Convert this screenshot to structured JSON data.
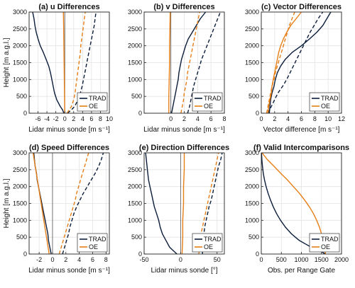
{
  "colors": {
    "trad": "#0b1d3a",
    "oe": "#e67e16",
    "grid": "#e3e3e3",
    "axis": "#222222"
  },
  "legend": {
    "trad": "TRAD",
    "oe": "OE",
    "placement": "bottom-right"
  },
  "chart_data": [
    {
      "type": "line",
      "title": "(a) u Differences",
      "xlabel": "Lidar minus sonde [m s⁻¹]",
      "ylabel": "Height [m a.g.l.]",
      "xlim": [
        -8,
        10
      ],
      "ylim": [
        0,
        3000
      ],
      "xticks": [
        "-6",
        "-4",
        "-2",
        "0",
        "2",
        "4",
        "6",
        "8",
        "10"
      ],
      "xtick_values": [
        -6,
        -4,
        -2,
        0,
        2,
        4,
        6,
        8,
        10
      ],
      "yticks": [
        "0",
        "500",
        "1000",
        "1500",
        "2000",
        "2500",
        "3000"
      ],
      "ytick_values": [
        0,
        500,
        1000,
        1500,
        2000,
        2500,
        3000
      ],
      "ref_line": 0,
      "grid": true,
      "series": [
        {
          "name": "TRAD",
          "style": "solid",
          "y": [
            0,
            100,
            200,
            400,
            600,
            800,
            1000,
            1200,
            1400,
            1600,
            1800,
            2000,
            2200,
            2400,
            2600,
            2800,
            3000
          ],
          "x": [
            -0.2,
            -0.5,
            -1.0,
            -1.8,
            -2.3,
            -2.6,
            -2.9,
            -3.2,
            -3.6,
            -4.2,
            -4.8,
            -5.5,
            -6.0,
            -6.4,
            -6.7,
            -6.9,
            -7.2
          ]
        },
        {
          "name": "TRAD",
          "style": "dashed",
          "y": [
            0,
            100,
            200,
            400,
            600,
            800,
            1000,
            1200,
            1400,
            1600,
            1800,
            2000,
            2200,
            2400,
            2600,
            2800,
            3000
          ],
          "x": [
            0.6,
            1.5,
            2.2,
            3.0,
            3.5,
            3.9,
            4.2,
            4.5,
            4.8,
            5.1,
            5.4,
            5.7,
            6.0,
            6.3,
            6.6,
            6.8,
            7.0
          ]
        },
        {
          "name": "OE",
          "style": "solid",
          "y": [
            0,
            500,
            1000,
            1500,
            2000,
            2500,
            3000
          ],
          "x": [
            0.0,
            -0.05,
            -0.1,
            -0.15,
            -0.2,
            -0.25,
            -0.3
          ]
        },
        {
          "name": "OE",
          "style": "dashed",
          "y": [
            0,
            100,
            200,
            400,
            600,
            800,
            1000,
            1200,
            1400,
            1600,
            1800,
            2000,
            2200,
            2400,
            2600,
            2800,
            3000
          ],
          "x": [
            0.5,
            1.0,
            1.5,
            2.0,
            2.3,
            2.5,
            2.7,
            2.9,
            3.1,
            3.3,
            3.5,
            3.6,
            3.8,
            4.0,
            4.2,
            4.4,
            4.6
          ]
        }
      ]
    },
    {
      "type": "line",
      "title": "(b) v Differences",
      "xlabel": "Lidar minus sonde [m s⁻¹]",
      "xlim": [
        -4,
        8
      ],
      "ylim": [
        0,
        3000
      ],
      "xticks": [
        "0",
        "2",
        "4",
        "6",
        "8"
      ],
      "xtick_values": [
        0,
        2,
        4,
        6,
        8
      ],
      "yticks": [
        "0",
        "500",
        "1000",
        "1500",
        "2000",
        "2500",
        "3000"
      ],
      "ytick_values": [
        0,
        500,
        1000,
        1500,
        2000,
        2500,
        3000
      ],
      "ref_line": 0,
      "grid": true,
      "series": [
        {
          "name": "TRAD",
          "style": "solid",
          "y": [
            0,
            200,
            400,
            600,
            800,
            1000,
            1200,
            1400,
            1600,
            1800,
            2000,
            2200,
            2400,
            2600,
            2800,
            3000
          ],
          "x": [
            0.1,
            0.3,
            0.5,
            0.7,
            0.9,
            1.1,
            1.2,
            1.4,
            1.6,
            1.9,
            2.2,
            2.6,
            3.2,
            3.8,
            4.4,
            5.2
          ]
        },
        {
          "name": "TRAD",
          "style": "dashed",
          "y": [
            0,
            200,
            400,
            600,
            800,
            1000,
            1200,
            1400,
            1600,
            1800,
            2000,
            2200,
            2400,
            2600,
            2800,
            3000
          ],
          "x": [
            2.5,
            2.8,
            3.0,
            3.2,
            3.4,
            3.7,
            4.0,
            4.3,
            4.6,
            5.0,
            5.4,
            5.8,
            6.2,
            6.6,
            7.0,
            7.4
          ]
        },
        {
          "name": "OE",
          "style": "solid",
          "y": [
            0,
            500,
            1000,
            1500,
            2000,
            2500,
            3000
          ],
          "x": [
            -0.3,
            -0.3,
            -0.25,
            -0.2,
            -0.2,
            -0.15,
            -0.1
          ]
        },
        {
          "name": "OE",
          "style": "dashed",
          "y": [
            0,
            200,
            400,
            600,
            800,
            1000,
            1200,
            1400,
            1600,
            1800,
            2000,
            2200,
            2400,
            2600,
            2800,
            3000
          ],
          "x": [
            1.5,
            1.7,
            1.9,
            2.0,
            2.2,
            2.4,
            2.5,
            2.7,
            2.9,
            3.1,
            3.3,
            3.5,
            3.7,
            3.9,
            4.1,
            4.3
          ]
        }
      ]
    },
    {
      "type": "line",
      "title": "(c) Vector Differences",
      "xlabel": "Vector difference [m s⁻¹]",
      "xlim": [
        0,
        12
      ],
      "ylim": [
        0,
        3000
      ],
      "xticks": [
        "0",
        "2",
        "4",
        "6",
        "8",
        "10",
        "12"
      ],
      "xtick_values": [
        0,
        2,
        4,
        6,
        8,
        10,
        12
      ],
      "yticks": [
        "0",
        "500",
        "1000",
        "1500",
        "2000",
        "2500",
        "3000"
      ],
      "ytick_values": [
        0,
        500,
        1000,
        1500,
        2000,
        2500,
        3000
      ],
      "grid": true,
      "series": [
        {
          "name": "TRAD",
          "style": "solid",
          "y": [
            0,
            200,
            400,
            600,
            800,
            1000,
            1200,
            1400,
            1600,
            1800,
            2000,
            2200,
            2400,
            2600,
            2800,
            3000
          ],
          "x": [
            1.2,
            1.3,
            1.4,
            1.6,
            1.9,
            2.1,
            2.4,
            2.9,
            3.6,
            4.6,
            6.0,
            7.2,
            8.3,
            9.2,
            9.8,
            10.4
          ]
        },
        {
          "name": "TRAD",
          "style": "dashed",
          "y": [
            0,
            200,
            400,
            600,
            800,
            1000,
            1200,
            1400,
            1600,
            1800,
            2000,
            2200,
            2400,
            2600,
            2800,
            3000
          ],
          "x": [
            1.0,
            1.5,
            2.0,
            2.5,
            3.2,
            3.8,
            4.3,
            4.8,
            5.3,
            5.8,
            6.3,
            6.8,
            7.3,
            7.9,
            8.5,
            9.2
          ]
        },
        {
          "name": "OE",
          "style": "solid",
          "y": [
            0,
            200,
            400,
            600,
            800,
            1000,
            1200,
            1400,
            1600,
            1800,
            2000,
            2200,
            2400,
            2600,
            2800,
            3000
          ],
          "x": [
            1.0,
            1.1,
            1.3,
            1.5,
            1.6,
            1.8,
            2.0,
            2.2,
            2.4,
            2.6,
            2.9,
            3.3,
            3.8,
            4.4,
            5.2,
            6.0
          ]
        },
        {
          "name": "OE",
          "style": "dashed",
          "y": [
            0,
            200,
            400,
            600,
            800,
            1000,
            1200,
            1400,
            1600,
            1800,
            2000,
            2200,
            2400,
            2600,
            2800,
            3000
          ],
          "x": [
            0.8,
            1.0,
            1.2,
            1.4,
            1.6,
            1.9,
            2.1,
            2.4,
            2.7,
            3.0,
            3.3,
            3.6,
            3.9,
            4.2,
            4.6,
            5.0
          ]
        }
      ]
    },
    {
      "type": "line",
      "title": "(d) Speed Differences",
      "xlabel": "Lidar minus sonde [m s⁻¹]",
      "ylabel": "Height [m a.g.l.]",
      "xlim": [
        -3.5,
        8.5
      ],
      "ylim": [
        0,
        3000
      ],
      "xticks": [
        "-2",
        "0",
        "2",
        "4",
        "6",
        "8"
      ],
      "xtick_values": [
        -2,
        0,
        2,
        4,
        6,
        8
      ],
      "yticks": [
        "0",
        "500",
        "1000",
        "1500",
        "2000",
        "2500",
        "3000"
      ],
      "ytick_values": [
        0,
        500,
        1000,
        1500,
        2000,
        2500,
        3000
      ],
      "ref_line": 0,
      "grid": true,
      "series": [
        {
          "name": "TRAD",
          "style": "solid",
          "y": [
            0,
            200,
            400,
            600,
            800,
            1000,
            1200,
            1400,
            1600,
            1800,
            2000,
            2200,
            2400,
            2600,
            2800,
            3000
          ],
          "x": [
            -0.2,
            -0.4,
            -0.6,
            -0.7,
            -0.9,
            -1.1,
            -1.3,
            -1.5,
            -1.7,
            -1.9,
            -2.1,
            -2.3,
            -2.4,
            -2.6,
            -2.7,
            -2.8
          ]
        },
        {
          "name": "TRAD",
          "style": "dashed",
          "y": [
            0,
            200,
            400,
            600,
            800,
            1000,
            1200,
            1400,
            1600,
            1800,
            2000,
            2200,
            2400,
            2600,
            2800,
            3000
          ],
          "x": [
            1.5,
            1.8,
            2.1,
            2.4,
            2.6,
            2.9,
            3.2,
            3.6,
            4.1,
            4.6,
            5.2,
            5.8,
            6.4,
            6.9,
            7.3,
            7.6
          ]
        },
        {
          "name": "OE",
          "style": "solid",
          "y": [
            0,
            500,
            1000,
            1500,
            2000,
            2500,
            3000
          ],
          "x": [
            -0.5,
            -0.9,
            -1.3,
            -1.7,
            -2.1,
            -2.5,
            -2.9
          ]
        },
        {
          "name": "OE",
          "style": "dashed",
          "y": [
            0,
            200,
            400,
            600,
            800,
            1000,
            1200,
            1400,
            1600,
            1800,
            2000,
            2200,
            2400,
            2600,
            2800,
            3000
          ],
          "x": [
            1.0,
            1.3,
            1.6,
            1.9,
            2.2,
            2.5,
            2.8,
            3.1,
            3.4,
            3.6,
            3.9,
            4.2,
            4.5,
            4.8,
            5.1,
            5.4
          ]
        }
      ]
    },
    {
      "type": "line",
      "title": "(e) Direction Differences",
      "xlabel": "Lidar minus sonde [°]",
      "xlim": [
        -50,
        60
      ],
      "ylim": [
        0,
        3000
      ],
      "xticks": [
        "-50",
        "0",
        "50"
      ],
      "xtick_values": [
        -50,
        0,
        50
      ],
      "yticks": [
        "0",
        "500",
        "1000",
        "1500",
        "2000",
        "2500",
        "3000"
      ],
      "ytick_values": [
        0,
        500,
        1000,
        1500,
        2000,
        2500,
        3000
      ],
      "ref_line": 0,
      "grid": true,
      "series": [
        {
          "name": "TRAD",
          "style": "solid",
          "y": [
            0,
            200,
            400,
            600,
            800,
            1000,
            1200,
            1400,
            1600,
            1800,
            2000,
            2200,
            2400,
            2600,
            2800,
            3000
          ],
          "x": [
            -5,
            -15,
            -20,
            -25,
            -28,
            -30,
            -33,
            -36,
            -38,
            -40,
            -42,
            -44,
            -45,
            -46,
            -47,
            -48
          ]
        },
        {
          "name": "TRAD",
          "style": "dashed",
          "y": [
            0,
            200,
            400,
            600,
            800,
            1000,
            1200,
            1400,
            1600,
            1800,
            2000,
            2200,
            2400,
            2600,
            2800,
            3000
          ],
          "x": [
            30,
            30,
            29,
            32,
            33,
            35,
            37,
            39,
            42,
            44,
            46,
            48,
            50,
            52,
            55,
            57
          ]
        },
        {
          "name": "OE",
          "style": "solid",
          "y": [
            0,
            500,
            1000,
            1500,
            2000,
            2500,
            3000
          ],
          "x": [
            2,
            3,
            3,
            4,
            4,
            5,
            5
          ]
        },
        {
          "name": "OE",
          "style": "dashed",
          "y": [
            0,
            200,
            400,
            600,
            800,
            1000,
            1200,
            1400,
            1600,
            1800,
            2000,
            2200,
            2400,
            2600,
            2800,
            3000
          ],
          "x": [
            25,
            26,
            27,
            28,
            30,
            32,
            34,
            36,
            38,
            40,
            42,
            44,
            46,
            48,
            50,
            52
          ]
        }
      ]
    },
    {
      "type": "line",
      "title": "(f) Valid Intercomparisons",
      "xlabel": "Obs. per Range Gate",
      "xlim": [
        0,
        2000
      ],
      "ylim": [
        0,
        3000
      ],
      "xticks": [
        "0",
        "500",
        "1000",
        "1500",
        "2000"
      ],
      "xtick_values": [
        0,
        500,
        1000,
        1500,
        2000
      ],
      "yticks": [
        "0",
        "500",
        "1000",
        "1500",
        "2000",
        "2500",
        "3000"
      ],
      "ytick_values": [
        0,
        500,
        1000,
        1500,
        2000,
        2500,
        3000
      ],
      "grid": true,
      "series": [
        {
          "name": "TRAD",
          "style": "solid",
          "y": [
            0,
            100,
            200,
            300,
            400,
            500,
            600,
            800,
            1000,
            1200,
            1400,
            1600,
            1800,
            2000,
            2200,
            2400,
            2600,
            2800,
            3000
          ],
          "x": [
            1600,
            1450,
            1250,
            1100,
            950,
            850,
            750,
            600,
            480,
            380,
            300,
            230,
            170,
            120,
            80,
            50,
            30,
            15,
            5
          ]
        },
        {
          "name": "OE",
          "style": "solid",
          "y": [
            0,
            100,
            200,
            400,
            600,
            800,
            1000,
            1200,
            1400,
            1600,
            1800,
            2000,
            2200,
            2400,
            2600,
            2800,
            3000
          ],
          "x": [
            1600,
            1590,
            1570,
            1540,
            1500,
            1450,
            1380,
            1300,
            1200,
            1080,
            950,
            800,
            650,
            480,
            320,
            150,
            20
          ]
        }
      ]
    }
  ]
}
